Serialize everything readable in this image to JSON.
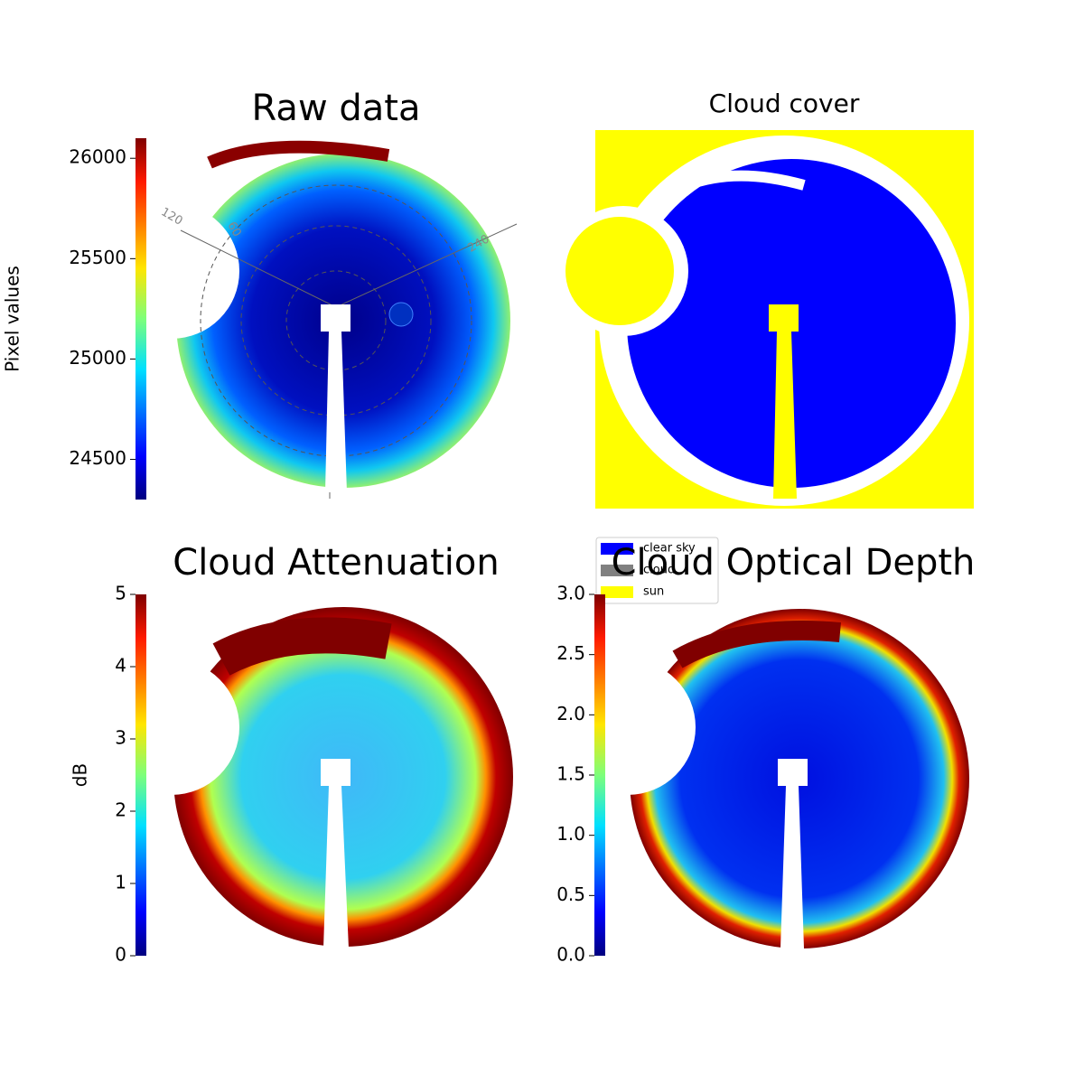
{
  "chart_data": [
    {
      "type": "image",
      "title": "Raw data",
      "colorbar_label": "Pixel values",
      "ylim": [
        24300,
        26100
      ],
      "yticks": [
        24500,
        25000,
        25500,
        26000
      ],
      "annotations": [
        "120",
        "60",
        "240"
      ]
    },
    {
      "type": "mask",
      "title": "Cloud cover",
      "legend": [
        {
          "name": "clear sky",
          "color": "#0000ff"
        },
        {
          "name": "cloud",
          "color": "#808080"
        },
        {
          "name": "sun",
          "color": "#ffff00"
        }
      ]
    },
    {
      "type": "image",
      "title": "Cloud Attenuation",
      "colorbar_label": "dB",
      "ylim": [
        0,
        5
      ],
      "yticks": [
        0,
        1,
        2,
        3,
        4,
        5
      ]
    },
    {
      "type": "image",
      "title": "Cloud Optical Depth",
      "ylim": [
        0,
        3
      ],
      "yticks": [
        {
          "value": 0,
          "label": "0.0"
        },
        {
          "value": 0.5,
          "label": "0.5"
        },
        {
          "value": 1,
          "label": "1.0"
        },
        {
          "value": 1.5,
          "label": "1.5"
        },
        {
          "value": 2,
          "label": "2.0"
        },
        {
          "value": 2.5,
          "label": "2.5"
        },
        {
          "value": 3,
          "label": "3.0"
        }
      ]
    }
  ]
}
